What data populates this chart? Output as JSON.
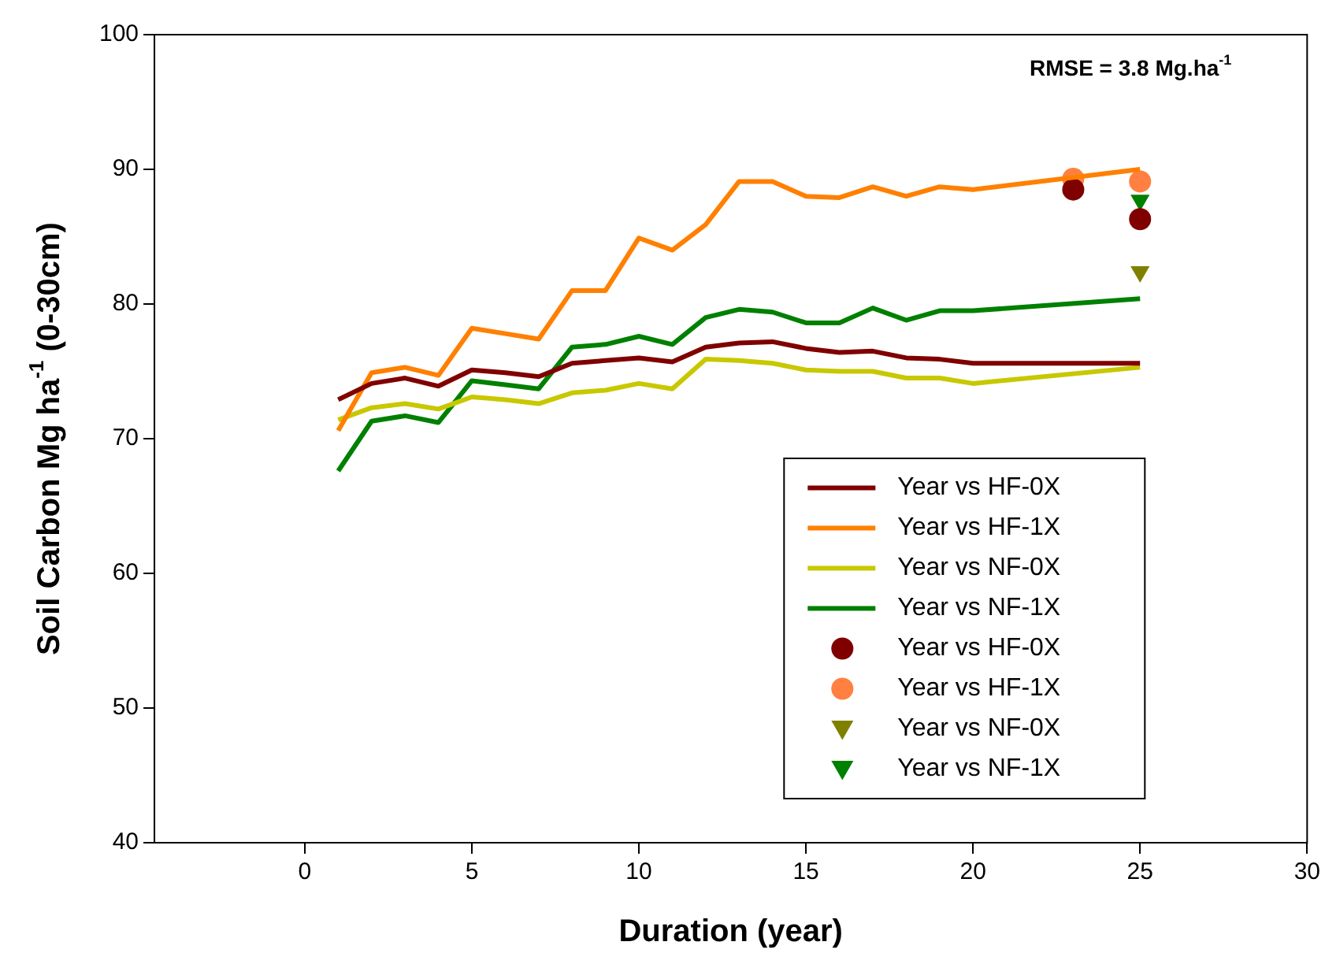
{
  "chart_data": {
    "type": "line",
    "xlabel": "Duration (year)",
    "ylabel": "Soil Carbon Mg ha$^{-1}$ (0-30cm)",
    "annotations": [
      "RMSE = 3.8 Mg.ha$^{-1}$"
    ],
    "xlim": [
      -4.5,
      30
    ],
    "xticks": [
      0,
      5,
      10,
      15,
      20,
      25,
      30
    ],
    "ylim": [
      40,
      100
    ],
    "yticks": [
      40,
      50,
      60,
      70,
      80,
      90,
      100
    ],
    "grid": false,
    "legend": "bottom right",
    "series": [
      {
        "name": "Year vs HF-0X",
        "type": "line",
        "marker": "none",
        "color": "#800000",
        "x": [
          1,
          2,
          3,
          4,
          5,
          6,
          7,
          8,
          9,
          10,
          11,
          12,
          13,
          14,
          15,
          16,
          17,
          18,
          19,
          20,
          25
        ],
        "values": [
          72.9,
          74.1,
          74.5,
          73.9,
          75.1,
          74.9,
          74.6,
          75.6,
          75.8,
          76.0,
          75.7,
          76.8,
          77.1,
          77.2,
          76.7,
          76.4,
          76.5,
          76.0,
          75.9,
          75.6,
          75.6
        ]
      },
      {
        "name": "Year vs HF-1X",
        "type": "line",
        "marker": "none",
        "color": "#ff8000",
        "x": [
          1,
          2,
          3,
          4,
          5,
          6,
          7,
          8,
          9,
          10,
          11,
          12,
          13,
          14,
          15,
          16,
          17,
          18,
          19,
          20,
          25
        ],
        "values": [
          70.6,
          74.9,
          75.3,
          74.7,
          78.2,
          77.8,
          77.4,
          81.0,
          81.0,
          84.9,
          84.0,
          85.9,
          89.1,
          89.1,
          88.0,
          87.9,
          88.7,
          88.0,
          88.7,
          88.5,
          90.0
        ]
      },
      {
        "name": "Year vs NF-0X",
        "type": "line",
        "marker": "none",
        "color": "#c8c800",
        "x": [
          1,
          2,
          3,
          4,
          5,
          6,
          7,
          8,
          9,
          10,
          11,
          12,
          13,
          14,
          15,
          16,
          17,
          18,
          19,
          20,
          25
        ],
        "values": [
          71.4,
          72.3,
          72.6,
          72.2,
          73.1,
          72.9,
          72.6,
          73.4,
          73.6,
          74.1,
          73.7,
          75.9,
          75.8,
          75.6,
          75.1,
          75.0,
          75.0,
          74.5,
          74.5,
          74.1,
          75.3
        ]
      },
      {
        "name": "Year vs NF-1X",
        "type": "line",
        "marker": "none",
        "color": "#008000",
        "x": [
          1,
          2,
          3,
          4,
          5,
          6,
          7,
          8,
          9,
          10,
          11,
          12,
          13,
          14,
          15,
          16,
          17,
          18,
          19,
          20,
          25
        ],
        "values": [
          67.6,
          71.3,
          71.7,
          71.2,
          74.3,
          74.0,
          73.7,
          76.8,
          77.0,
          77.6,
          77.0,
          79.0,
          79.6,
          79.4,
          78.6,
          78.6,
          79.7,
          78.8,
          79.5,
          79.5,
          80.4
        ]
      },
      {
        "name": "Year vs HF-0X",
        "type": "scatter",
        "marker": "circle",
        "color": "#800000",
        "x": [
          23,
          25
        ],
        "values": [
          88.5,
          86.3
        ]
      },
      {
        "name": "Year vs HF-1X",
        "type": "scatter",
        "marker": "circle",
        "color": "#ff8040",
        "x": [
          23,
          25
        ],
        "values": [
          89.3,
          89.1
        ]
      },
      {
        "name": "Year vs NF-0X",
        "type": "scatter",
        "marker": "triangle",
        "color": "#808000",
        "x": [
          25
        ],
        "values": [
          82.4
        ]
      },
      {
        "name": "Year vs NF-1X",
        "type": "scatter",
        "marker": "triangle",
        "color": "#008000",
        "x": [
          25
        ],
        "values": [
          87.7
        ]
      }
    ]
  }
}
